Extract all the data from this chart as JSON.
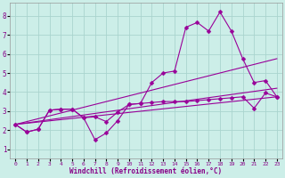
{
  "background_color": "#cceee8",
  "grid_color": "#aad4ce",
  "line_color": "#990099",
  "xlabel": "Windchill (Refroidissement éolien,°C)",
  "xlim": [
    -0.5,
    23.5
  ],
  "ylim": [
    0.5,
    8.7
  ],
  "xticks": [
    0,
    1,
    2,
    3,
    4,
    5,
    6,
    7,
    8,
    9,
    10,
    11,
    12,
    13,
    14,
    15,
    16,
    17,
    18,
    19,
    20,
    21,
    22,
    23
  ],
  "yticks": [
    1,
    2,
    3,
    4,
    5,
    6,
    7,
    8
  ],
  "line_main": {
    "x": [
      0,
      1,
      2,
      3,
      4,
      5,
      6,
      7,
      8,
      9,
      10,
      11,
      12,
      13,
      14,
      15,
      16,
      17,
      18,
      19,
      20,
      21,
      22,
      23
    ],
    "y": [
      2.3,
      1.9,
      2.05,
      3.05,
      3.1,
      3.1,
      2.65,
      1.5,
      1.85,
      2.5,
      3.35,
      3.4,
      4.5,
      5.0,
      5.1,
      7.4,
      7.65,
      7.2,
      8.2,
      7.2,
      5.75,
      4.5,
      4.6,
      3.75
    ]
  },
  "line_medium": {
    "x": [
      0,
      1,
      2,
      3,
      4,
      5,
      6,
      7,
      8,
      9,
      10,
      11,
      12,
      13,
      14,
      15,
      16,
      17,
      18,
      19,
      20,
      21,
      22,
      23
    ],
    "y": [
      2.3,
      1.9,
      2.05,
      3.05,
      3.1,
      3.1,
      2.65,
      2.7,
      2.45,
      2.95,
      3.35,
      3.4,
      3.45,
      3.5,
      3.5,
      3.5,
      3.55,
      3.6,
      3.65,
      3.7,
      3.75,
      3.15,
      3.95,
      3.75
    ]
  },
  "trend_lines": [
    {
      "x": [
        0,
        23
      ],
      "y": [
        2.3,
        5.75
      ]
    },
    {
      "x": [
        0,
        23
      ],
      "y": [
        2.3,
        4.2
      ]
    },
    {
      "x": [
        0,
        23
      ],
      "y": [
        2.3,
        3.75
      ]
    }
  ]
}
